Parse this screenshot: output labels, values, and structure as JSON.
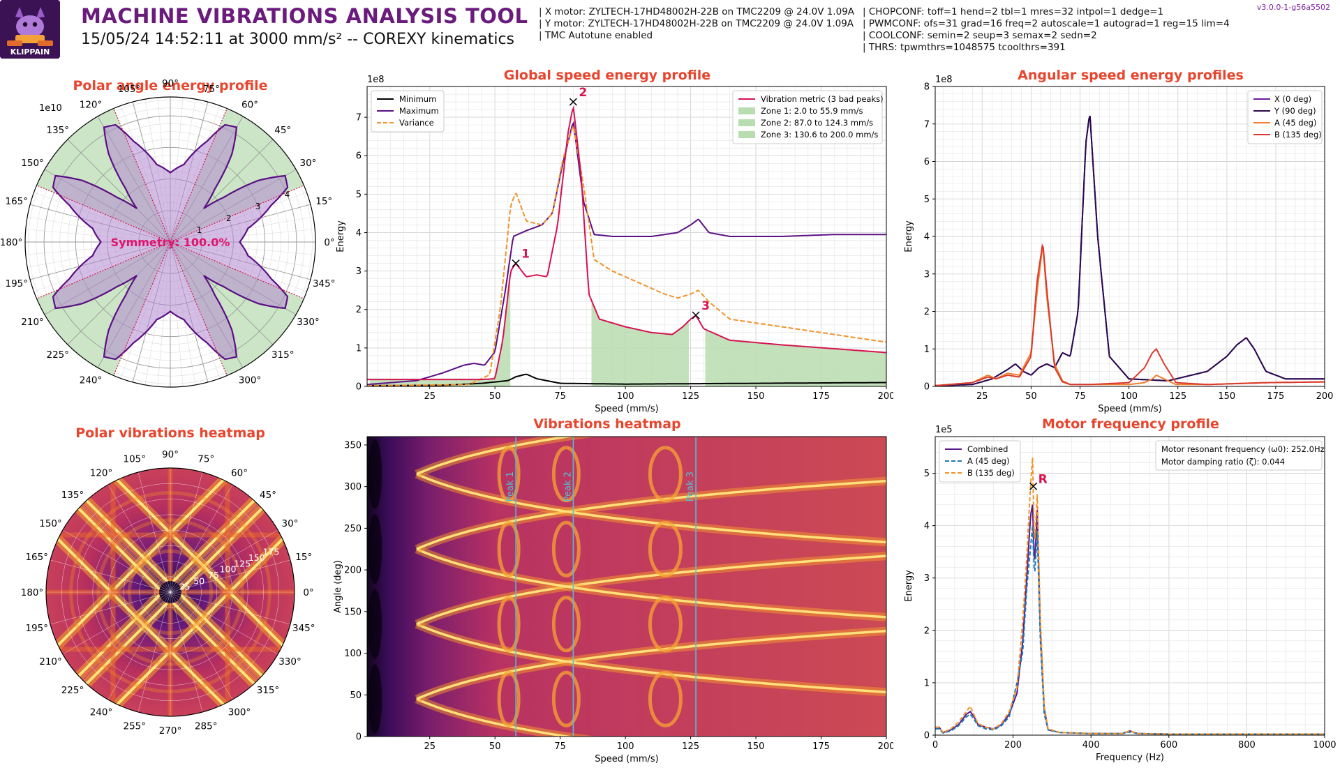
{
  "header": {
    "logo_text": "KLIPPAIN",
    "title": "MACHINE VIBRATIONS ANALYSIS TOOL",
    "subtitle": "15/05/24 14:52:11 at 3000 mm/s² -- COREXY kinematics",
    "version": "v3.0.0-1-g56a5502",
    "motor_info": [
      "| X motor: ZYLTECH-17HD48002H-22B on TMC2209 @ 24.0V 1.09A",
      "| Y motor: ZYLTECH-17HD48002H-22B on TMC2209 @ 24.0V 1.09A",
      "| TMC Autotune enabled"
    ],
    "tmc_info": [
      "| CHOPCONF: toff=1 hend=2 tbl=1 mres=32 intpol=1 dedge=1",
      "| PWMCONF: ofs=31 grad=16 freq=2 autoscale=1 autograd=1 reg=15 lim=4",
      "| COOLCONF: semin=2 seup=3 semax=2 sedn=2",
      "| THRS: tpwmthrs=1048575 tcoolthrs=391"
    ]
  },
  "colors": {
    "title": "#6a1b7c",
    "panel_title": "#e8452e",
    "minimum": "#000000",
    "maximum": "#5b0f84",
    "variance": "#f0932b",
    "vibration_metric": "#d6124f",
    "zone_fill": "#b8ddb0",
    "x_series": "#6a1b9a",
    "y_series": "#2a0a4e",
    "a_series": "#f07f2e",
    "b_series": "#d93a2e",
    "combined": "#5b1a8c",
    "a_dash": "#1f77b4",
    "b_dash": "#f0932b",
    "peak_line": "#4fc3d7"
  },
  "chart_data": [
    {
      "id": "polar_energy",
      "type": "polar",
      "title": "Polar angle energy profile",
      "scale_label": "1e10",
      "angle_labels": [
        "0°",
        "15°",
        "30°",
        "45°",
        "60°",
        "75°",
        "90°",
        "105°",
        "120°",
        "135°",
        "150°",
        "165°",
        "180°",
        "195°",
        "210°",
        "225°",
        "240°",
        "255°",
        "270°",
        "285°",
        "300°",
        "315°",
        "330°",
        "345°"
      ],
      "radial_ticks": [
        "1",
        "2",
        "3",
        "4"
      ],
      "rmax": 4.6,
      "annotation": "Symmetry: 100.0%",
      "zones": [
        [
          23,
          67
        ],
        [
          113,
          157
        ],
        [
          203,
          247
        ],
        [
          293,
          337
        ]
      ],
      "profile_angles": [
        0,
        10,
        20,
        25,
        30,
        35,
        40,
        45,
        50,
        55,
        60,
        65,
        70,
        80,
        90
      ],
      "profile_values": [
        2.2,
        2.5,
        3.4,
        4.1,
        4.2,
        3.4,
        2.2,
        1.5,
        2.2,
        3.4,
        4.2,
        4.1,
        3.4,
        2.5,
        2.2
      ]
    },
    {
      "id": "global_speed",
      "type": "line",
      "title": "Global speed energy profile",
      "scale_label": "1e8",
      "xlabel": "Speed (mm/s)",
      "ylabel": "Energy",
      "xlim": [
        1,
        200
      ],
      "ylim": [
        0,
        7.8
      ],
      "xticks": [
        "25",
        "50",
        "75",
        "100",
        "125",
        "150",
        "175",
        "200"
      ],
      "yticks": [
        "0",
        "1",
        "2",
        "3",
        "4",
        "5",
        "6",
        "7"
      ],
      "legend_left": [
        "Minimum",
        "Maximum",
        "Variance"
      ],
      "legend_right": [
        "Vibration metric (3 bad peaks)",
        "Zone 1: 2.0 to 55.9 mm/s",
        "Zone 2: 87.0 to 124.3 mm/s",
        "Zone 3: 130.6 to 200.0 mm/s"
      ],
      "zones": [
        [
          2.0,
          55.9
        ],
        [
          87.0,
          124.3
        ],
        [
          130.6,
          200.0
        ]
      ],
      "peaks": [
        {
          "label": "1",
          "x": 58,
          "y": 3.2
        },
        {
          "label": "2",
          "x": 80,
          "y": 7.4
        },
        {
          "label": "3",
          "x": 127,
          "y": 1.85
        }
      ],
      "series": [
        {
          "name": "Minimum",
          "x": [
            1,
            30,
            45,
            55,
            58,
            62,
            66,
            75,
            100,
            150,
            200
          ],
          "y": [
            0.02,
            0.03,
            0.08,
            0.15,
            0.25,
            0.32,
            0.2,
            0.08,
            0.06,
            0.08,
            0.1
          ]
        },
        {
          "name": "Maximum",
          "x": [
            1,
            20,
            30,
            38,
            42,
            46,
            50,
            54,
            57,
            62,
            68,
            72,
            76,
            80,
            84,
            88,
            95,
            110,
            120,
            125,
            128,
            132,
            140,
            160,
            180,
            200
          ],
          "y": [
            0.05,
            0.15,
            0.35,
            0.55,
            0.6,
            0.55,
            0.9,
            2.5,
            3.9,
            4.05,
            4.2,
            4.5,
            5.8,
            6.9,
            4.8,
            3.95,
            3.9,
            3.9,
            4.0,
            4.2,
            4.35,
            4.0,
            3.9,
            3.9,
            3.95,
            3.95
          ]
        },
        {
          "name": "Variance",
          "x": [
            1,
            20,
            40,
            48,
            52,
            56,
            58,
            62,
            68,
            72,
            76,
            80,
            84,
            88,
            95,
            105,
            115,
            120,
            125,
            128,
            132,
            140,
            160,
            180,
            200
          ],
          "y": [
            0.02,
            0.03,
            0.05,
            0.3,
            2.0,
            4.7,
            5.05,
            4.3,
            4.2,
            4.5,
            5.9,
            6.8,
            5.2,
            3.3,
            3.0,
            2.7,
            2.4,
            2.3,
            2.4,
            2.5,
            2.2,
            1.75,
            1.55,
            1.35,
            1.15
          ]
        },
        {
          "name": "Vibration metric",
          "x": [
            1,
            30,
            45,
            50,
            53,
            56,
            58,
            62,
            66,
            70,
            74,
            78,
            80,
            83,
            86,
            90,
            100,
            110,
            118,
            122,
            125,
            127,
            130,
            140,
            160,
            180,
            200
          ],
          "y": [
            0.18,
            0.18,
            0.18,
            0.2,
            1.2,
            3.0,
            3.2,
            2.85,
            2.9,
            2.85,
            4.2,
            6.6,
            7.3,
            5.5,
            2.4,
            1.75,
            1.55,
            1.4,
            1.35,
            1.55,
            1.75,
            1.85,
            1.5,
            1.2,
            1.08,
            0.98,
            0.88
          ]
        }
      ]
    },
    {
      "id": "angular_speed",
      "type": "line",
      "title": "Angular speed energy profiles",
      "scale_label": "1e8",
      "xlabel": "Speed (mm/s)",
      "ylabel": "Energy",
      "xlim": [
        1,
        200
      ],
      "ylim": [
        0,
        8
      ],
      "xticks": [
        "25",
        "50",
        "75",
        "100",
        "125",
        "150",
        "175",
        "200"
      ],
      "yticks": [
        "0",
        "1",
        "2",
        "3",
        "4",
        "5",
        "6",
        "7",
        "8"
      ],
      "legend": [
        "X (0 deg)",
        "Y (90 deg)",
        "A (45 deg)",
        "B (135 deg)"
      ],
      "series": [
        {
          "name": "X (0 deg)",
          "x": [
            1,
            20,
            30,
            38,
            42,
            46,
            50,
            54,
            58,
            62,
            66,
            70,
            74,
            78,
            80,
            84,
            90,
            100,
            120,
            140,
            150,
            155,
            160,
            164,
            170,
            180,
            200
          ],
          "y": [
            0.02,
            0.05,
            0.2,
            0.45,
            0.6,
            0.4,
            0.3,
            0.5,
            0.6,
            0.5,
            0.9,
            0.8,
            2.0,
            6.5,
            7.3,
            4.0,
            0.8,
            0.2,
            0.15,
            0.4,
            0.8,
            1.1,
            1.3,
            1.0,
            0.4,
            0.2,
            0.2
          ]
        },
        {
          "name": "Y (90 deg)",
          "x": [
            1,
            20,
            30,
            38,
            42,
            46,
            50,
            54,
            58,
            62,
            66,
            70,
            74,
            78,
            80,
            84,
            90,
            100,
            120,
            140,
            150,
            155,
            160,
            164,
            170,
            180,
            200
          ],
          "y": [
            0.02,
            0.05,
            0.2,
            0.45,
            0.6,
            0.4,
            0.3,
            0.5,
            0.6,
            0.5,
            0.9,
            0.8,
            2.0,
            6.5,
            7.3,
            4.0,
            0.8,
            0.2,
            0.15,
            0.4,
            0.8,
            1.1,
            1.3,
            1.0,
            0.4,
            0.2,
            0.2
          ]
        },
        {
          "name": "A (45 deg)",
          "x": [
            1,
            20,
            28,
            32,
            38,
            44,
            50,
            53,
            56,
            58,
            62,
            66,
            70,
            80,
            100,
            108,
            112,
            114,
            118,
            124,
            140,
            170,
            200
          ],
          "y": [
            0.02,
            0.1,
            0.3,
            0.2,
            0.35,
            0.3,
            0.9,
            2.5,
            3.8,
            2.4,
            0.6,
            0.15,
            0.05,
            0.05,
            0.05,
            0.1,
            0.2,
            0.3,
            0.2,
            0.05,
            0.05,
            0.1,
            0.12
          ]
        },
        {
          "name": "B (135 deg)",
          "x": [
            1,
            20,
            28,
            32,
            38,
            44,
            50,
            53,
            56,
            58,
            62,
            66,
            70,
            80,
            100,
            108,
            112,
            114,
            118,
            124,
            140,
            170,
            200
          ],
          "y": [
            0.02,
            0.1,
            0.25,
            0.2,
            0.3,
            0.25,
            0.8,
            2.8,
            3.85,
            2.6,
            0.5,
            0.12,
            0.05,
            0.05,
            0.1,
            0.5,
            0.9,
            1.0,
            0.6,
            0.1,
            0.05,
            0.1,
            0.12
          ]
        }
      ]
    },
    {
      "id": "polar_heatmap",
      "type": "heatmap",
      "title": "Polar vibrations heatmap",
      "angle_labels": [
        "0°",
        "15°",
        "30°",
        "45°",
        "60°",
        "75°",
        "90°",
        "105°",
        "120°",
        "135°",
        "150°",
        "165°",
        "180°",
        "195°",
        "210°",
        "225°",
        "240°",
        "255°",
        "270°",
        "285°",
        "300°",
        "315°",
        "330°",
        "345°"
      ],
      "radial_ticks": [
        "25",
        "50",
        "75",
        "100",
        "125",
        "150",
        "175"
      ]
    },
    {
      "id": "vibrations_heatmap",
      "type": "heatmap",
      "title": "Vibrations heatmap",
      "xlabel": "Speed (mm/s)",
      "ylabel": "Angle (deg)",
      "xlim": [
        1,
        200
      ],
      "ylim": [
        0,
        360
      ],
      "xticks": [
        "25",
        "50",
        "75",
        "100",
        "125",
        "150",
        "175",
        "200"
      ],
      "yticks": [
        "0",
        "50",
        "100",
        "150",
        "200",
        "250",
        "300",
        "350"
      ],
      "peak_lines": [
        {
          "label": "Peak 1",
          "x": 58
        },
        {
          "label": "Peak 2",
          "x": 80
        },
        {
          "label": "Peak 3",
          "x": 127
        }
      ]
    },
    {
      "id": "motor_freq",
      "type": "line",
      "title": "Motor frequency profile",
      "scale_label": "1e5",
      "xlabel": "Frequency (Hz)",
      "ylabel": "Energy",
      "xlim": [
        0,
        1000
      ],
      "ylim": [
        0,
        5.7
      ],
      "xticks": [
        "0",
        "200",
        "400",
        "600",
        "800",
        "1000"
      ],
      "yticks": [
        "0",
        "1",
        "2",
        "3",
        "4",
        "5"
      ],
      "legend": [
        "Combined",
        "A (45 deg)",
        "B (135 deg)"
      ],
      "info": [
        "Motor resonant frequency (ω0): 252.0Hz",
        "Motor damping ratio (ζ): 0.044"
      ],
      "peak": {
        "label": "R",
        "x": 252,
        "y": 4.75
      },
      "series": [
        {
          "name": "Combined",
          "x": [
            0,
            10,
            20,
            40,
            60,
            80,
            90,
            100,
            110,
            130,
            150,
            170,
            190,
            210,
            225,
            235,
            245,
            250,
            255,
            262,
            270,
            280,
            290,
            320,
            400,
            480,
            500,
            520,
            600,
            800,
            1000
          ],
          "y": [
            0.15,
            0.15,
            0.05,
            0.1,
            0.2,
            0.4,
            0.45,
            0.35,
            0.2,
            0.15,
            0.12,
            0.2,
            0.4,
            0.8,
            1.8,
            3.0,
            4.2,
            4.4,
            3.2,
            4.3,
            2.0,
            0.5,
            0.1,
            0.05,
            0.03,
            0.03,
            0.08,
            0.03,
            0.02,
            0.02,
            0.02
          ]
        },
        {
          "name": "A (45 deg)",
          "x": [
            0,
            10,
            20,
            40,
            60,
            80,
            90,
            100,
            110,
            130,
            150,
            170,
            190,
            210,
            225,
            235,
            245,
            250,
            255,
            262,
            270,
            280,
            290,
            320,
            400,
            480,
            500,
            520,
            600,
            800,
            1000
          ],
          "y": [
            0.12,
            0.12,
            0.04,
            0.08,
            0.18,
            0.35,
            0.4,
            0.3,
            0.18,
            0.12,
            0.1,
            0.18,
            0.35,
            1.0,
            1.6,
            2.8,
            3.6,
            4.0,
            3.0,
            3.9,
            1.8,
            0.4,
            0.1,
            0.05,
            0.03,
            0.03,
            0.06,
            0.03,
            0.02,
            0.02,
            0.02
          ]
        },
        {
          "name": "B (135 deg)",
          "x": [
            0,
            10,
            20,
            40,
            60,
            80,
            90,
            100,
            110,
            130,
            150,
            170,
            190,
            210,
            225,
            235,
            245,
            250,
            255,
            262,
            270,
            280,
            290,
            320,
            400,
            480,
            500,
            520,
            600,
            800,
            1000
          ],
          "y": [
            0.15,
            0.15,
            0.05,
            0.12,
            0.25,
            0.45,
            0.55,
            0.38,
            0.22,
            0.15,
            0.12,
            0.22,
            0.45,
            0.9,
            2.2,
            3.4,
            4.8,
            5.3,
            3.6,
            4.6,
            2.2,
            0.55,
            0.12,
            0.05,
            0.03,
            0.03,
            0.08,
            0.03,
            0.02,
            0.02,
            0.02
          ]
        }
      ]
    }
  ]
}
